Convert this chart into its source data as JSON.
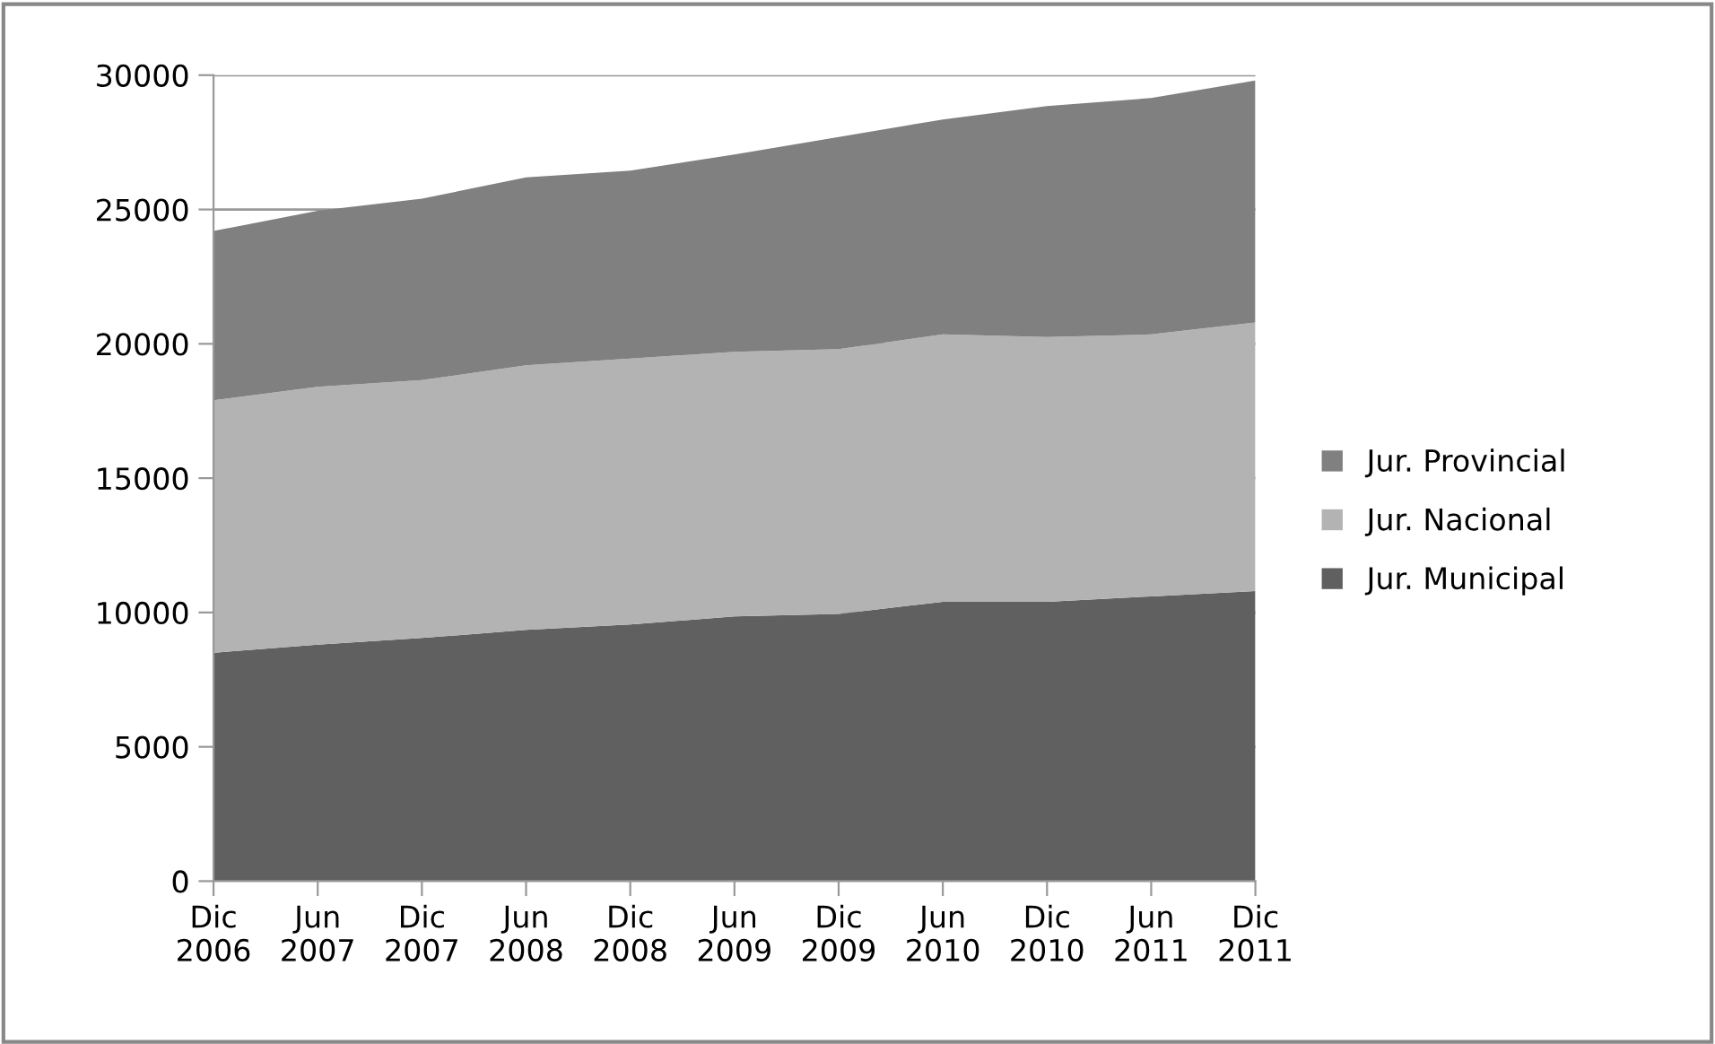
{
  "chart_data": {
    "type": "area",
    "stacked": true,
    "categories": [
      "Dic\n2006",
      "Jun\n2007",
      "Dic\n2007",
      "Jun\n2008",
      "Dic\n2008",
      "Jun\n2009",
      "Dic\n2009",
      "Jun\n2010",
      "Dic\n2010",
      "Jun\n2011",
      "Dic\n2011"
    ],
    "series": [
      {
        "name": "Jur. Municipal",
        "color": "#606060",
        "values": [
          8500,
          8800,
          9050,
          9350,
          9550,
          9850,
          9950,
          10400,
          10400,
          10600,
          10800
        ]
      },
      {
        "name": "Jur. Nacional",
        "color": "#b3b3b3",
        "values": [
          9400,
          9600,
          9600,
          9850,
          9900,
          9850,
          9850,
          9950,
          9850,
          9750,
          10000
        ]
      },
      {
        "name": "Jur. Provincial",
        "color": "#808080",
        "values": [
          6300,
          6550,
          6750,
          7000,
          7000,
          7350,
          7900,
          8000,
          8600,
          8800,
          9000
        ]
      }
    ],
    "ylim": [
      0,
      30000
    ],
    "yticks": [
      0,
      5000,
      10000,
      15000,
      20000,
      25000,
      30000
    ],
    "grid": "y",
    "legend": "right"
  }
}
